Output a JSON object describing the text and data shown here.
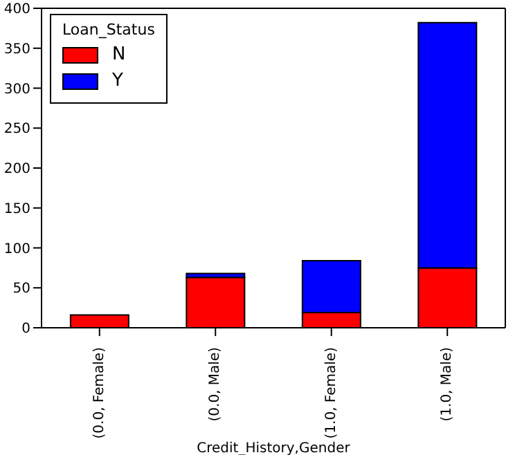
{
  "chart_data": {
    "type": "bar",
    "stacked": true,
    "xlabel": "Credit_History,Gender",
    "legend_title": "Loan_Status",
    "categories": [
      "(0.0, Female)",
      "(0.0, Male)",
      "(1.0, Female)",
      "(1.0, Male)"
    ],
    "series": [
      {
        "name": "N",
        "color": "#ff0000",
        "values": [
          16,
          63,
          19,
          75
        ]
      },
      {
        "name": "Y",
        "color": "#0000ff",
        "values": [
          null,
          5,
          65,
          307
        ]
      }
    ],
    "ylim": [
      0,
      400
    ],
    "yticks": [
      0,
      50,
      100,
      150,
      200,
      250,
      300,
      350,
      400
    ],
    "legend": "top left",
    "grid": false
  }
}
